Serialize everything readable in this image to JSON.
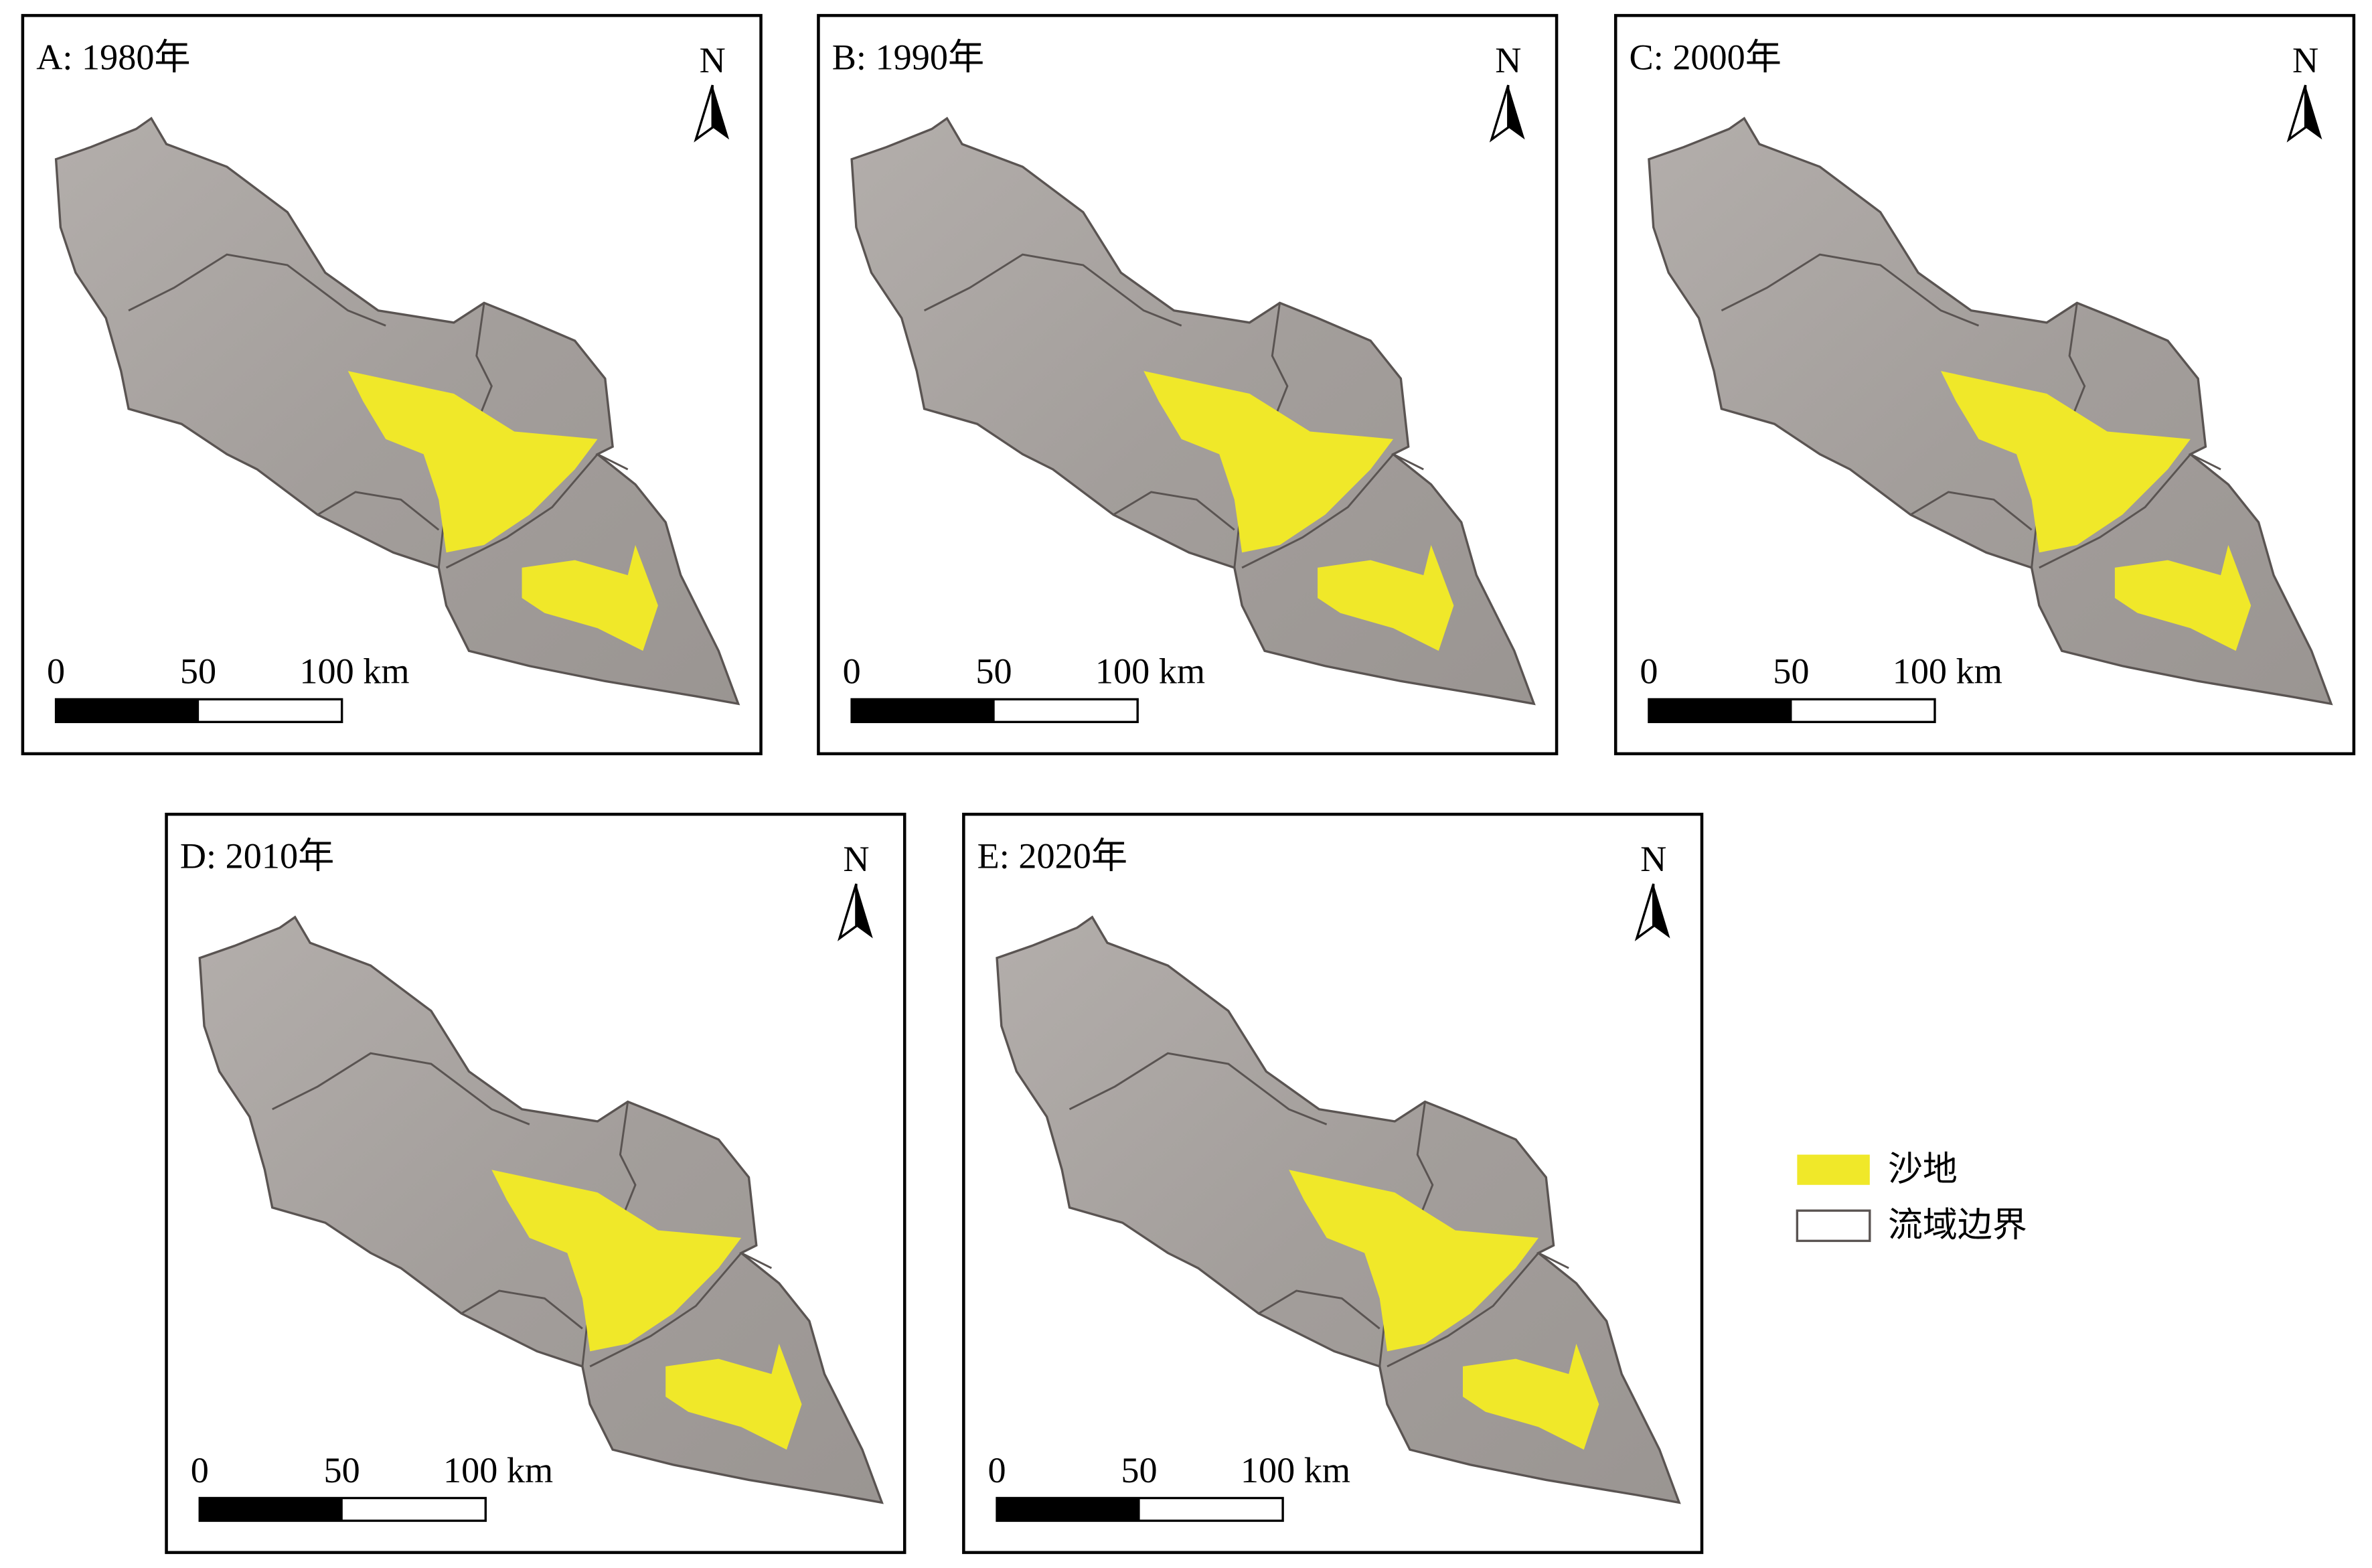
{
  "panels": [
    {
      "title": "A: 1980年",
      "north": "N",
      "scale_labels": [
        "0",
        "50",
        "100 km"
      ]
    },
    {
      "title": "B: 1990年",
      "north": "N",
      "scale_labels": [
        "0",
        "50",
        "100 km"
      ]
    },
    {
      "title": "C: 2000年",
      "north": "N",
      "scale_labels": [
        "0",
        "50",
        "100 km"
      ]
    },
    {
      "title": "D: 2010年",
      "north": "N",
      "scale_labels": [
        "0",
        "50",
        "100 km"
      ]
    },
    {
      "title": "E: 2020年",
      "north": "N",
      "scale_labels": [
        "0",
        "50",
        "100 km"
      ]
    }
  ],
  "legend": {
    "items": [
      "沙地",
      "流域边界"
    ]
  }
}
